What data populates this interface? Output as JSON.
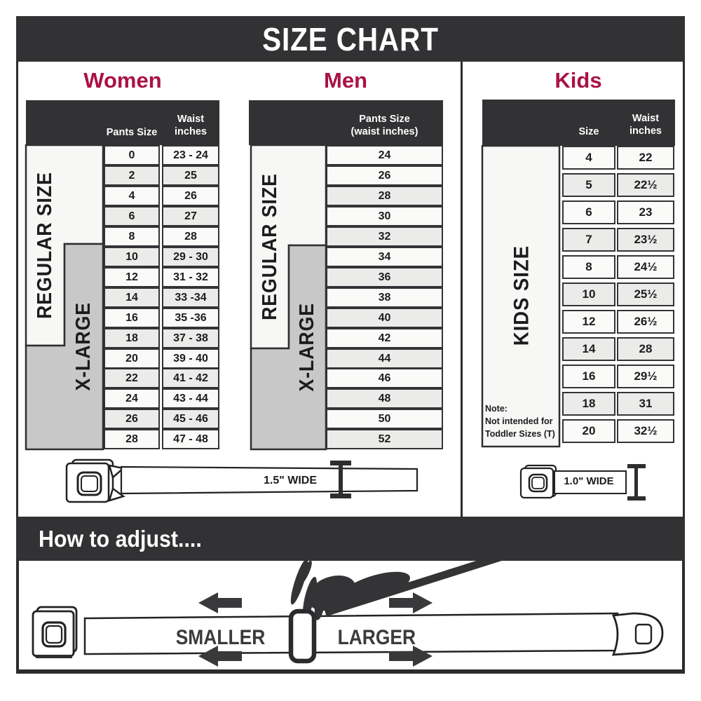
{
  "title": "SIZE CHART",
  "colors": {
    "dark": "#323133",
    "accent_red": "#A91244",
    "band_gray": "#C9C8C9",
    "band_white": "#F7F7F5",
    "row_alt": "#EBEBE9"
  },
  "women": {
    "title": "Women",
    "col_headers": {
      "pants": "Pants Size",
      "waist": "Waist\ninches"
    },
    "bands": {
      "regular": "REGULAR SIZE",
      "xlarge": "X-LARGE"
    },
    "rows": [
      {
        "size": "0",
        "waist": "23 - 24"
      },
      {
        "size": "2",
        "waist": "25"
      },
      {
        "size": "4",
        "waist": "26"
      },
      {
        "size": "6",
        "waist": "27"
      },
      {
        "size": "8",
        "waist": "28"
      },
      {
        "size": "10",
        "waist": "29 - 30"
      },
      {
        "size": "12",
        "waist": "31 - 32"
      },
      {
        "size": "14",
        "waist": "33 -34"
      },
      {
        "size": "16",
        "waist": "35 -36"
      },
      {
        "size": "18",
        "waist": "37 - 38"
      },
      {
        "size": "20",
        "waist": "39 - 40"
      },
      {
        "size": "22",
        "waist": "41 - 42"
      },
      {
        "size": "24",
        "waist": "43 - 44"
      },
      {
        "size": "26",
        "waist": "45 - 46"
      },
      {
        "size": "28",
        "waist": "47 - 48"
      }
    ]
  },
  "men": {
    "title": "Men",
    "col_header": "Pants Size\n(waist inches)",
    "bands": {
      "regular": "REGULAR SIZE",
      "xlarge": "X-LARGE"
    },
    "rows": [
      "24",
      "26",
      "28",
      "30",
      "32",
      "34",
      "36",
      "38",
      "40",
      "42",
      "44",
      "46",
      "48",
      "50",
      "52"
    ]
  },
  "kids": {
    "title": "Kids",
    "col_headers": {
      "size": "Size",
      "waist": "Waist\ninches"
    },
    "band": "KIDS SIZE",
    "note": "Note:\nNot intended for\nToddler Sizes (T)",
    "rows": [
      {
        "size": "4",
        "waist": "22"
      },
      {
        "size": "5",
        "waist": "22½"
      },
      {
        "size": "6",
        "waist": "23"
      },
      {
        "size": "7",
        "waist": "23½"
      },
      {
        "size": "8",
        "waist": "24½"
      },
      {
        "size": "10",
        "waist": "25½"
      },
      {
        "size": "12",
        "waist": "26½"
      },
      {
        "size": "14",
        "waist": "28"
      },
      {
        "size": "16",
        "waist": "29½"
      },
      {
        "size": "18",
        "waist": "31"
      },
      {
        "size": "20",
        "waist": "32½"
      }
    ]
  },
  "belts": {
    "regular_width_label": "1.5\" WIDE",
    "kids_width_label": "1.0\" WIDE"
  },
  "adjust": {
    "heading": "How to adjust....",
    "smaller": "SMALLER",
    "larger": "LARGER"
  },
  "chart_data": [
    {
      "type": "table",
      "title": "Women",
      "columns": [
        "Pants Size",
        "Waist inches"
      ],
      "rows": [
        [
          "0",
          "23 - 24"
        ],
        [
          "2",
          "25"
        ],
        [
          "4",
          "26"
        ],
        [
          "6",
          "27"
        ],
        [
          "8",
          "28"
        ],
        [
          "10",
          "29 - 30"
        ],
        [
          "12",
          "31 - 32"
        ],
        [
          "14",
          "33 -34"
        ],
        [
          "16",
          "35 -36"
        ],
        [
          "18",
          "37 - 38"
        ],
        [
          "20",
          "39 - 40"
        ],
        [
          "22",
          "41 - 42"
        ],
        [
          "24",
          "43 - 44"
        ],
        [
          "26",
          "45 - 46"
        ],
        [
          "28",
          "47 - 48"
        ]
      ],
      "row_groups": {
        "REGULAR SIZE": [
          "0",
          "18"
        ],
        "X-LARGE": [
          "10",
          "28"
        ]
      }
    },
    {
      "type": "table",
      "title": "Men",
      "columns": [
        "Pants Size (waist inches)"
      ],
      "rows": [
        [
          "24"
        ],
        [
          "26"
        ],
        [
          "28"
        ],
        [
          "30"
        ],
        [
          "32"
        ],
        [
          "34"
        ],
        [
          "36"
        ],
        [
          "38"
        ],
        [
          "40"
        ],
        [
          "42"
        ],
        [
          "44"
        ],
        [
          "46"
        ],
        [
          "48"
        ],
        [
          "50"
        ],
        [
          "52"
        ]
      ],
      "row_groups": {
        "REGULAR SIZE": [
          "24",
          "42"
        ],
        "X-LARGE": [
          "34",
          "52"
        ]
      }
    },
    {
      "type": "table",
      "title": "Kids",
      "columns": [
        "Size",
        "Waist inches"
      ],
      "rows": [
        [
          "4",
          "22"
        ],
        [
          "5",
          "22½"
        ],
        [
          "6",
          "23"
        ],
        [
          "7",
          "23½"
        ],
        [
          "8",
          "24½"
        ],
        [
          "10",
          "25½"
        ],
        [
          "12",
          "26½"
        ],
        [
          "14",
          "28"
        ],
        [
          "16",
          "29½"
        ],
        [
          "18",
          "31"
        ],
        [
          "20",
          "32½"
        ]
      ],
      "row_groups": {
        "KIDS SIZE": [
          "4",
          "20"
        ]
      }
    }
  ]
}
